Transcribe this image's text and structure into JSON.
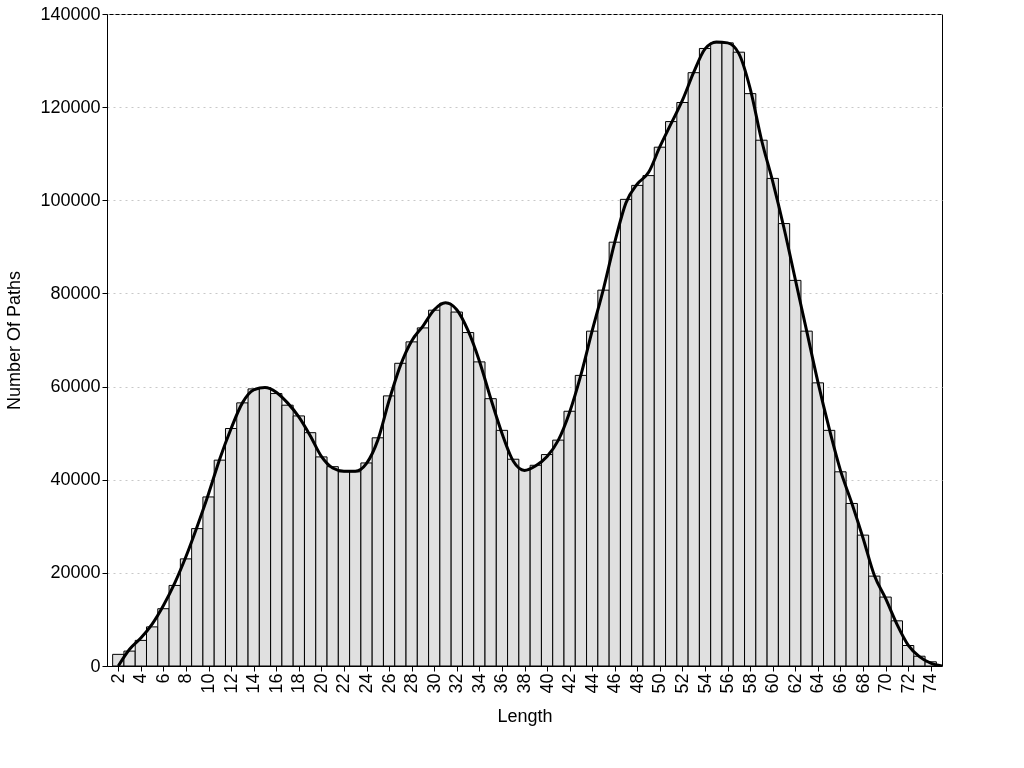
{
  "chart_data": {
    "type": "histogram",
    "xlabel": "Length",
    "ylabel": "Number Of Paths",
    "bins": [
      1.5,
      2.5,
      3.5,
      4.5,
      5.5,
      6.5,
      7.5,
      8.5,
      9.5,
      10.5,
      11.5,
      12.5,
      13.5,
      14.5,
      15.5,
      16.5,
      17.5,
      18.5,
      19.5,
      20.5,
      21.5,
      22.5,
      23.5,
      24.5,
      25.5,
      26.5,
      27.5,
      28.5,
      29.5,
      30.5,
      31.5,
      32.5,
      33.5,
      34.5,
      35.5,
      36.5,
      37.5,
      38.5,
      39.5,
      40.5,
      41.5,
      42.5,
      43.5,
      44.5,
      45.5,
      46.5,
      47.5,
      48.5,
      49.5,
      50.5,
      51.5,
      52.5,
      53.5,
      54.5,
      55.5,
      56.5,
      57.5,
      58.5,
      59.5,
      60.5,
      61.5,
      62.5,
      63.5,
      64.5,
      65.5,
      66.5,
      67.5,
      68.5,
      69.5,
      70.5,
      71.5,
      72.5,
      73.5,
      74.5
    ],
    "values": [
      2500,
      3200,
      5500,
      8400,
      12300,
      17300,
      23000,
      29500,
      36300,
      44200,
      51000,
      56500,
      59500,
      59800,
      58500,
      56000,
      53700,
      50100,
      44900,
      42800,
      41700,
      41700,
      43600,
      49000,
      58000,
      65000,
      69600,
      72600,
      76400,
      77900,
      76000,
      71600,
      65300,
      57400,
      50600,
      44400,
      42200,
      43100,
      45400,
      48500,
      54700,
      62400,
      71900,
      80700,
      91000,
      100200,
      103200,
      105300,
      111400,
      116900,
      121000,
      127400,
      132600,
      133800,
      133800,
      131800,
      122900,
      112900,
      104700,
      95000,
      82800,
      71900,
      60800,
      50600,
      41700,
      34900,
      28100,
      19300,
      14800,
      9700,
      4400,
      2100,
      900
    ],
    "color": "#e0e0e0",
    "series": [
      {
        "type": "line",
        "color": "#000000",
        "x": [
          2,
          3,
          4,
          5,
          6,
          7,
          8,
          9,
          10,
          11,
          12,
          13,
          14,
          15,
          16,
          17,
          18,
          19,
          20,
          21,
          22,
          23,
          24,
          25,
          26,
          27,
          28,
          29,
          30,
          31,
          32,
          33,
          34,
          35,
          36,
          37,
          38,
          39,
          40,
          41,
          42,
          43,
          44,
          45,
          46,
          47,
          48,
          49,
          50,
          51,
          52,
          53,
          54,
          55,
          56,
          57,
          58,
          59,
          60,
          61,
          62,
          63,
          64,
          65,
          66,
          67,
          68,
          69,
          70,
          71,
          72,
          73,
          74,
          75
        ],
        "values": [
          0,
          3600,
          6000,
          9000,
          13000,
          17800,
          23500,
          30000,
          37000,
          44500,
          51000,
          56500,
          59300,
          59800,
          58800,
          56500,
          53500,
          49500,
          45000,
          42500,
          41800,
          41800,
          43500,
          48500,
          57000,
          64500,
          69800,
          73000,
          76500,
          78000,
          76500,
          72000,
          65500,
          57500,
          50000,
          44000,
          42000,
          43000,
          45000,
          48500,
          54500,
          62500,
          72000,
          81000,
          91000,
          99500,
          103500,
          106000,
          111500,
          116500,
          121500,
          127500,
          132500,
          134000,
          133800,
          131500,
          124000,
          113000,
          104000,
          94000,
          83000,
          72000,
          61000,
          51000,
          42000,
          35000,
          27500,
          19500,
          14500,
          9000,
          4500,
          2000,
          600,
          0
        ]
      }
    ],
    "xlim": [
      1,
      75
    ],
    "xticks": [
      2,
      4,
      6,
      8,
      10,
      12,
      14,
      16,
      18,
      20,
      22,
      24,
      26,
      28,
      30,
      32,
      34,
      36,
      38,
      40,
      42,
      44,
      46,
      48,
      50,
      52,
      54,
      56,
      58,
      60,
      62,
      64,
      66,
      68,
      70,
      72,
      74
    ],
    "ylim": [
      0,
      140000
    ],
    "yticks": [
      0,
      20000,
      40000,
      60000,
      80000,
      100000,
      120000,
      140000
    ],
    "grid": "y"
  }
}
